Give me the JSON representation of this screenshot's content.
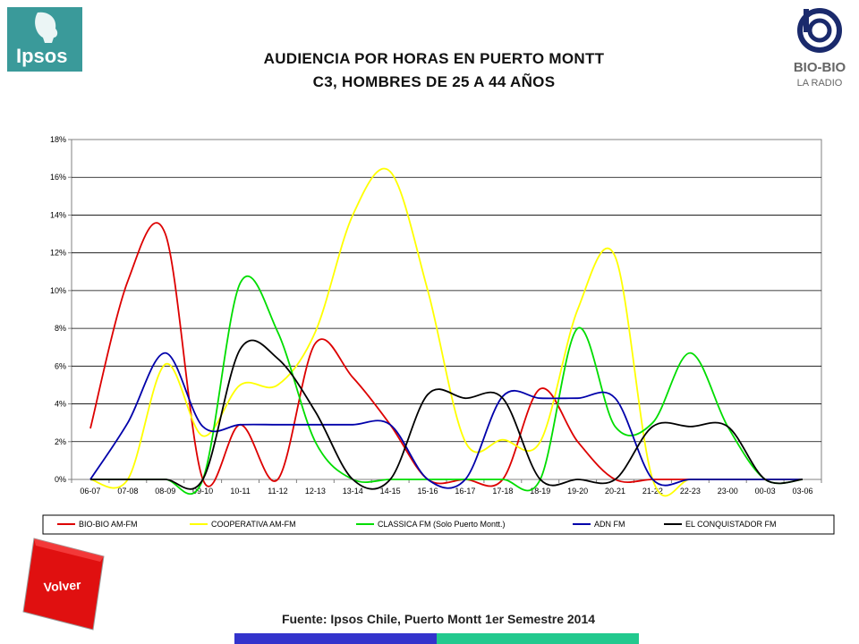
{
  "header": {
    "title_line1": "AUDIENCIA POR HORAS EN PUERTO MONTT",
    "title_line2": "C3, HOMBRES DE 25 A 44 AÑOS"
  },
  "logos": {
    "left": "Ipsos",
    "right_line1": "BIO-BIO",
    "right_line2": "LA RADIO"
  },
  "footer": {
    "back_button": "Volver",
    "source": "Fuente: Ipsos Chile, Puerto Montt 1er Semestre 2014"
  },
  "chart_data": {
    "type": "line",
    "categories": [
      "06-07",
      "07-08",
      "08-09",
      "09-10",
      "10-11",
      "11-12",
      "12-13",
      "13-14",
      "14-15",
      "15-16",
      "16-17",
      "17-18",
      "18-19",
      "19-20",
      "20-21",
      "21-22",
      "22-23",
      "23-00",
      "00-03",
      "03-06"
    ],
    "y_ticks": [
      "0%",
      "2%",
      "4%",
      "6%",
      "8%",
      "10%",
      "12%",
      "14%",
      "16%",
      "18%"
    ],
    "ylim": [
      0,
      18
    ],
    "y_unit": "%",
    "grid": true,
    "legend_position": "bottom",
    "series": [
      {
        "name": "BIO-BIO AM-FM",
        "color": "#dd0000",
        "values": [
          2.7,
          10.5,
          13.0,
          0.0,
          2.9,
          0.0,
          7.2,
          5.4,
          2.9,
          0.0,
          0.0,
          0.0,
          4.8,
          2.0,
          0.0,
          0.0,
          0.0,
          0.0,
          0.0,
          0.0
        ]
      },
      {
        "name": "COOPERATIVA AM-FM",
        "color": "#ffff00",
        "values": [
          0.0,
          0.0,
          6.1,
          2.3,
          5.0,
          5.0,
          7.8,
          14.0,
          16.3,
          10.0,
          2.0,
          2.1,
          2.0,
          9.0,
          11.8,
          0.0,
          0.0,
          0.0,
          0.0,
          0.0
        ]
      },
      {
        "name": "CLASSICA FM  (Solo Puerto Montt.)",
        "color": "#00dd00",
        "values": [
          0.0,
          0.0,
          0.0,
          0.0,
          10.4,
          7.8,
          2.0,
          0.0,
          0.0,
          0.0,
          0.0,
          0.0,
          0.0,
          8.0,
          2.8,
          3.0,
          6.7,
          2.8,
          0.0,
          0.0
        ]
      },
      {
        "name": "ADN FM",
        "color": "#0000aa",
        "values": [
          0.0,
          3.0,
          6.7,
          2.8,
          2.9,
          2.9,
          2.9,
          2.9,
          2.9,
          0.0,
          0.0,
          4.4,
          4.3,
          4.3,
          4.3,
          0.0,
          0.0,
          0.0,
          0.0,
          0.0
        ]
      },
      {
        "name": "EL CONQUISTADOR FM",
        "color": "#000000",
        "values": [
          0.0,
          0.0,
          0.0,
          0.0,
          6.9,
          6.4,
          3.6,
          0.0,
          0.0,
          4.5,
          4.3,
          4.3,
          0.0,
          0.0,
          0.0,
          2.8,
          2.8,
          2.8,
          0.0,
          0.0
        ]
      }
    ]
  }
}
